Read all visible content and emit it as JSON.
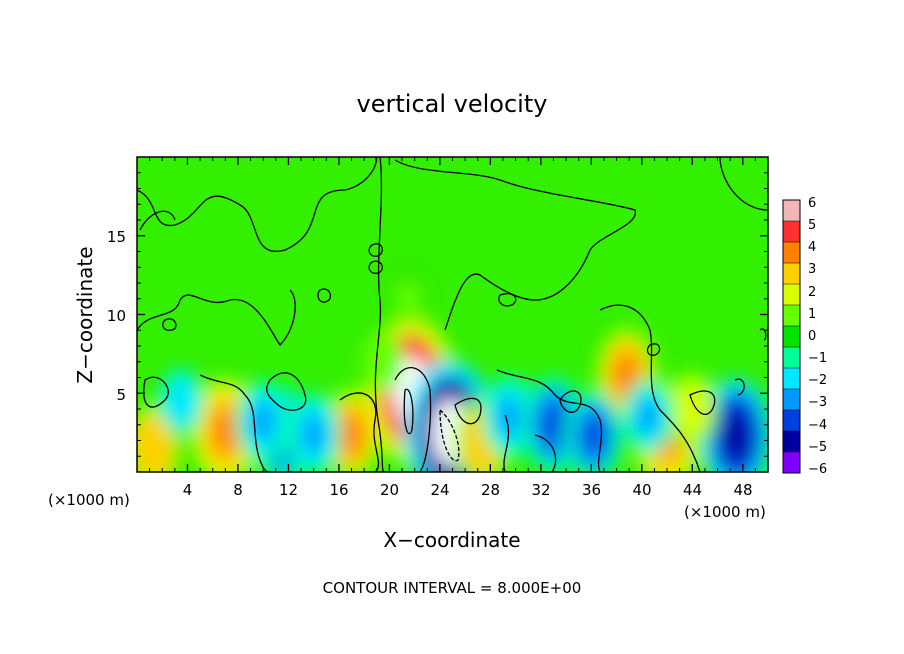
{
  "chart_data": {
    "type": "heatmap",
    "title": "vertical velocity",
    "xlabel": "X−coordinate",
    "ylabel": "Z−coordinate",
    "x_unit_left": "(×1000 m)",
    "x_unit_right": "(×1000 m)",
    "footer": "CONTOUR INTERVAL = 8.000E+00",
    "xlim": [
      0,
      50
    ],
    "ylim": [
      0,
      20
    ],
    "x_ticks": [
      4,
      8,
      12,
      16,
      20,
      24,
      28,
      32,
      36,
      40,
      44,
      48
    ],
    "y_ticks": [
      5,
      10,
      15
    ],
    "colorbar": {
      "labels": [
        "6",
        "5",
        "4",
        "3",
        "2",
        "1",
        "0",
        "−1",
        "−2",
        "−3",
        "−4",
        "−5",
        "−6"
      ],
      "colors": [
        "#f2b6b6",
        "#ff3030",
        "#ff8000",
        "#ffd000",
        "#d8ff00",
        "#66ff00",
        "#00e400",
        "#00ff99",
        "#00e8ff",
        "#0099ff",
        "#0040e0",
        "#0000a0",
        "#8000ff"
      ],
      "range": [
        -6,
        6
      ]
    },
    "features": [
      {
        "x": 1.3,
        "z": 1.6,
        "w": 3.5
      },
      {
        "x": 7.0,
        "z": 2.6,
        "w": 4.3
      },
      {
        "x": 17.0,
        "z": 2.4,
        "w": 3.8
      },
      {
        "x": 21.7,
        "z": 5.2,
        "w": 7.0
      },
      {
        "x": 24.8,
        "z": 2.5,
        "w": -7.0
      },
      {
        "x": 27.4,
        "z": 1.9,
        "w": 3.4
      },
      {
        "x": 38.8,
        "z": 6.1,
        "w": 4.2
      },
      {
        "x": 42.0,
        "z": 2.4,
        "w": 4.4
      },
      {
        "x": 47.5,
        "z": 2.3,
        "w": -5.0
      },
      {
        "x": 44.0,
        "z": 4.0,
        "w": 2.5
      },
      {
        "x": 11.5,
        "z": 2.4,
        "w": -4.0
      },
      {
        "x": 10.0,
        "z": 3.2,
        "w": -3.0
      },
      {
        "x": 14.0,
        "z": 2.4,
        "w": -3.0
      },
      {
        "x": 29.5,
        "z": 3.5,
        "w": -3.0
      },
      {
        "x": 33.0,
        "z": 3.0,
        "w": -4.0
      },
      {
        "x": 36.2,
        "z": 2.3,
        "w": -3.5
      },
      {
        "x": 40.5,
        "z": 3.5,
        "w": -2.5
      },
      {
        "x": 19.5,
        "z": 7.0,
        "w": 1.5
      },
      {
        "x": 21.5,
        "z": 11.0,
        "w": 0.8
      },
      {
        "x": 3.5,
        "z": 4.5,
        "w": -2.0
      }
    ]
  }
}
